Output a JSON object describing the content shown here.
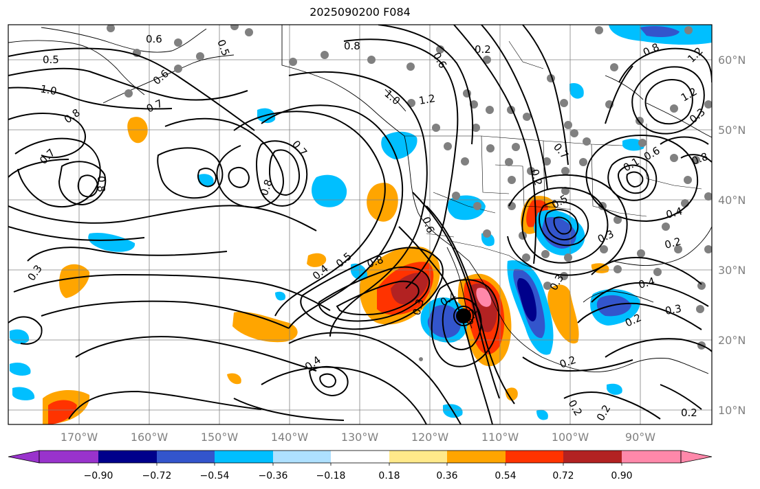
{
  "title": "2025090200 F084",
  "longitude_labels": [
    "170°W",
    "160°W",
    "150°W",
    "140°W",
    "130°W",
    "120°W",
    "110°W",
    "100°W",
    "90°W"
  ],
  "latitude_labels": [
    "60°N",
    "50°N",
    "40°N",
    "30°N",
    "20°N",
    "10°N"
  ],
  "colorbar": {
    "tick_labels": [
      "−0.90",
      "−0.72",
      "−0.54",
      "−0.36",
      "−0.18",
      "0.18",
      "0.36",
      "0.54",
      "0.72",
      "0.90"
    ],
    "colors": [
      "#9933cc",
      "#00008b",
      "#3355cc",
      "#00bfff",
      "#aee0ff",
      "#ffffff",
      "#ffe98a",
      "#ffa500",
      "#ff3300",
      "#b22222",
      "#ff88aa"
    ]
  },
  "contour_labels": [
    "0.5",
    "0.6",
    "0.5",
    "0.8",
    "0.2",
    "0.6",
    "1.2",
    "1.0",
    "0.7",
    "0.8",
    "0.6",
    "0.7",
    "0.8",
    "1.0",
    "1.2",
    "0.8",
    "0.7",
    "0.8",
    "0.4",
    "0.5",
    "0.8",
    "0.6",
    "0.2",
    "0.5",
    "0.7",
    "0.3",
    "0.6",
    "0.4",
    "0.2",
    "0.3",
    "0.4",
    "0.4",
    "0.3",
    "0.2",
    "0.3",
    "0.4",
    "0.2",
    "0.2",
    "0.2",
    "0.3",
    "0.1",
    "0.2",
    "0.2",
    "0.8",
    "1.2",
    "0.3"
  ],
  "colors": {
    "contour": "#000000",
    "coast": "#000000",
    "grid": "#808080",
    "station_dot": "#808080"
  }
}
